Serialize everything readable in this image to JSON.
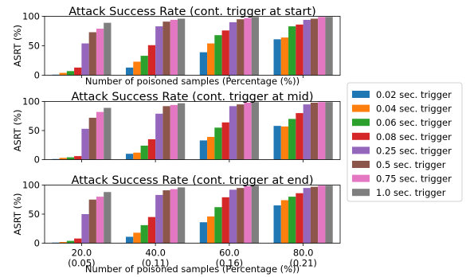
{
  "chart_data": [
    {
      "type": "bar",
      "title": "Attack Success Rate (cont. trigger at start)",
      "xlabel": "Number of poisoned samples (Percentage (%))",
      "ylabel": "ASRT (%)",
      "ylim": [
        0,
        100
      ],
      "yticks": [
        0,
        50,
        100
      ],
      "categories": [
        "20.0\n(0.05)",
        "40.0\n(0.11)",
        "60.0\n(0.16)",
        "80.0\n(0.21)"
      ],
      "show_tick_labels": false,
      "series": [
        {
          "name": "0.02 sec. trigger",
          "values": [
            1,
            13,
            39,
            61
          ]
        },
        {
          "name": "0.04 sec. trigger",
          "values": [
            4,
            23,
            54,
            64
          ]
        },
        {
          "name": "0.06 sec. trigger",
          "values": [
            7,
            33,
            68,
            83
          ]
        },
        {
          "name": "0.08 sec. trigger",
          "values": [
            13,
            51,
            76,
            86
          ]
        },
        {
          "name": "0.25 sec. trigger",
          "values": [
            54,
            83,
            90,
            94
          ]
        },
        {
          "name": "0.5 sec. trigger",
          "values": [
            73,
            91,
            95,
            96
          ]
        },
        {
          "name": "0.75 sec. trigger",
          "values": [
            79,
            94,
            97,
            99
          ]
        },
        {
          "name": "1.0 sec. trigger",
          "values": [
            89,
            96,
            99,
            99
          ]
        }
      ]
    },
    {
      "type": "bar",
      "title": "Attack Success Rate (cont. trigger at mid)",
      "xlabel": "",
      "ylabel": "ASRT (%)",
      "ylim": [
        0,
        100
      ],
      "yticks": [
        0,
        50,
        100
      ],
      "categories": [
        "20.0\n(0.05)",
        "40.0\n(0.11)",
        "60.0\n(0.16)",
        "80.0\n(0.21)"
      ],
      "show_tick_labels": false,
      "series": [
        {
          "name": "0.02 sec. trigger",
          "values": [
            1,
            10,
            33,
            58
          ]
        },
        {
          "name": "0.04 sec. trigger",
          "values": [
            3,
            12,
            39,
            57
          ]
        },
        {
          "name": "0.06 sec. trigger",
          "values": [
            4,
            24,
            55,
            70
          ]
        },
        {
          "name": "0.08 sec. trigger",
          "values": [
            6,
            35,
            64,
            80
          ]
        },
        {
          "name": "0.25 sec. trigger",
          "values": [
            53,
            79,
            92,
            95
          ]
        },
        {
          "name": "0.5 sec. trigger",
          "values": [
            72,
            92,
            95,
            98
          ]
        },
        {
          "name": "0.75 sec. trigger",
          "values": [
            82,
            94,
            98,
            99
          ]
        },
        {
          "name": "1.0 sec. trigger",
          "values": [
            89,
            97,
            99,
            99
          ]
        }
      ]
    },
    {
      "type": "bar",
      "title": "Attack Success Rate (cont. trigger at end)",
      "xlabel": "Number of poisoned samples (Percentage (%))",
      "ylabel": "ASRT (%)",
      "ylim": [
        0,
        100
      ],
      "yticks": [
        0,
        50,
        100
      ],
      "categories": [
        "20.0\n(0.05)",
        "40.0\n(0.11)",
        "60.0\n(0.16)",
        "80.0\n(0.21)"
      ],
      "show_tick_labels": true,
      "series": [
        {
          "name": "0.02 sec. trigger",
          "values": [
            1,
            11,
            36,
            65
          ]
        },
        {
          "name": "0.04 sec. trigger",
          "values": [
            2,
            18,
            46,
            74
          ]
        },
        {
          "name": "0.06 sec. trigger",
          "values": [
            4,
            31,
            62,
            80
          ]
        },
        {
          "name": "0.08 sec. trigger",
          "values": [
            8,
            45,
            79,
            86
          ]
        },
        {
          "name": "0.25 sec. trigger",
          "values": [
            50,
            83,
            92,
            95
          ]
        },
        {
          "name": "0.5 sec. trigger",
          "values": [
            75,
            91,
            95,
            97
          ]
        },
        {
          "name": "0.75 sec. trigger",
          "values": [
            80,
            93,
            98,
            99
          ]
        },
        {
          "name": "1.0 sec. trigger",
          "values": [
            88,
            96,
            99,
            99
          ]
        }
      ]
    }
  ],
  "legend": {
    "placement": "right",
    "colors": [
      "#1f77b4",
      "#ff7f0e",
      "#2ca02c",
      "#d62728",
      "#9467bd",
      "#8c564b",
      "#e377c2",
      "#7f7f7f"
    ]
  }
}
